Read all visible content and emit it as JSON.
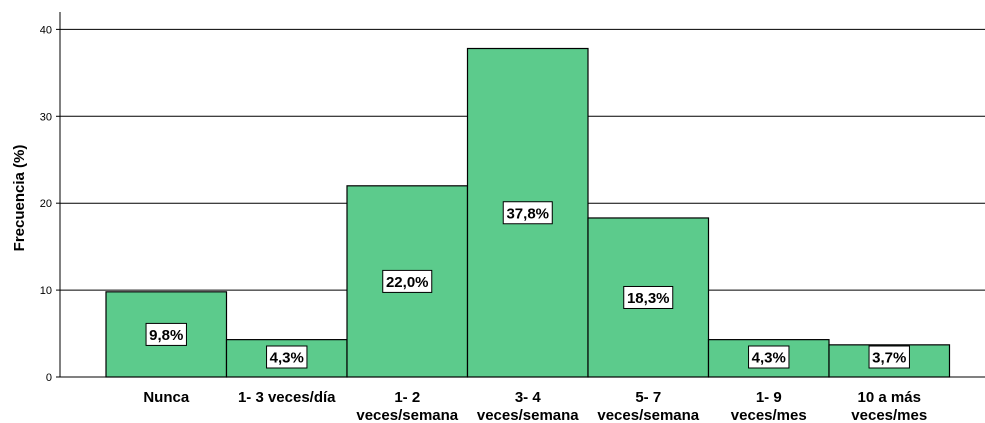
{
  "chart_data": {
    "type": "bar",
    "categories": [
      [
        "Nunca"
      ],
      [
        "1- 3 veces/día"
      ],
      [
        "1- 2",
        "veces/semana"
      ],
      [
        "3- 4",
        "veces/semana"
      ],
      [
        "5- 7",
        "veces/semana"
      ],
      [
        "1- 9",
        "veces/mes"
      ],
      [
        "10 a más",
        "veces/mes"
      ]
    ],
    "values": [
      9.8,
      4.3,
      22.0,
      37.8,
      18.3,
      4.3,
      3.7
    ],
    "data_labels": [
      "9,8%",
      "4,3%",
      "22,0%",
      "37,8%",
      "18,3%",
      "4,3%",
      "3,7%"
    ],
    "ylabel": "Frecuencia (%)",
    "xlabel": "",
    "ylim": [
      0,
      42
    ],
    "yticks": [
      0,
      10,
      20,
      30,
      40
    ],
    "grid": true,
    "bar_color": "#5ccb8c",
    "bar_edge_color": "#000000"
  }
}
